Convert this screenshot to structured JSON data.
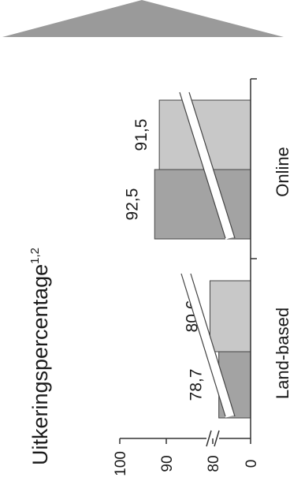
{
  "chart_data": {
    "type": "bar",
    "orientation": "rotated-90",
    "title": "Uitkeringspercentage",
    "title_superscript": "1,2",
    "categories": [
      "Land-based",
      "Online"
    ],
    "series": [
      {
        "values": [
          78.7,
          92.5
        ],
        "value_labels": [
          "78,7",
          "92,5"
        ],
        "color": "#a3a3a3"
      },
      {
        "values": [
          80.6,
          91.5
        ],
        "value_labels": [
          "80,6",
          "91,5"
        ],
        "color": "#c8c8c8"
      }
    ],
    "value_axis": {
      "ticks": [
        0,
        80,
        90,
        100
      ],
      "tick_labels": [
        "0",
        "80",
        "90",
        "100"
      ],
      "broken": true,
      "break_between": [
        0,
        80
      ],
      "range": [
        75,
        100
      ]
    },
    "legend": "none",
    "grid": false,
    "decoration": "grey triangle arrow at top"
  }
}
